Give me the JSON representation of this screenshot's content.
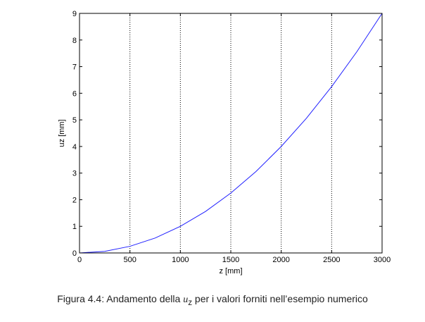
{
  "chart_data": {
    "type": "line",
    "xlabel": "z [mm]",
    "ylabel": "uz [mm]",
    "xlim": [
      0,
      3000
    ],
    "ylim": [
      0,
      9
    ],
    "x_ticks": [
      0,
      500,
      1000,
      1500,
      2000,
      2500,
      3000
    ],
    "y_ticks": [
      0,
      1,
      2,
      3,
      4,
      5,
      6,
      7,
      8,
      9
    ],
    "grid": "x-only, dotted",
    "line_color": "#2020ff",
    "series": [
      {
        "x": [
          0,
          250,
          500,
          750,
          1000,
          1250,
          1500,
          1750,
          2000,
          2250,
          2500,
          2750,
          3000
        ],
        "y": [
          0,
          0.06,
          0.25,
          0.56,
          1.0,
          1.56,
          2.25,
          3.06,
          4.0,
          5.06,
          6.25,
          7.56,
          9.0
        ]
      }
    ]
  },
  "caption": {
    "prefix": "Figura 4.4: Andamento della ",
    "symbol": "u",
    "subscript": "z",
    "suffix": " per i valori forniti nell’esempio numerico"
  }
}
